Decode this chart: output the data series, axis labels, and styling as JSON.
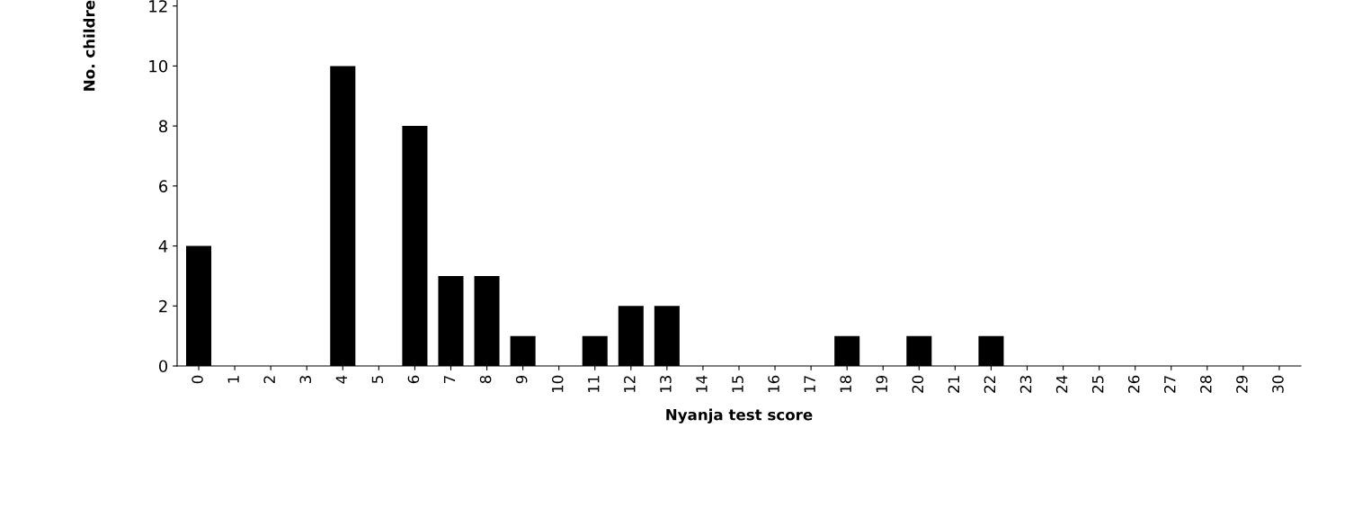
{
  "chart_data": {
    "type": "bar",
    "xlabel": "Nyanja test score",
    "ylabel": "No. childre",
    "categories": [
      "0",
      "1",
      "2",
      "3",
      "4",
      "5",
      "6",
      "7",
      "8",
      "9",
      "10",
      "11",
      "12",
      "13",
      "14",
      "15",
      "16",
      "17",
      "18",
      "19",
      "20",
      "21",
      "22",
      "23",
      "24",
      "25",
      "26",
      "27",
      "28",
      "29",
      "30"
    ],
    "values": [
      4,
      null,
      null,
      null,
      10,
      null,
      8,
      3,
      3,
      1,
      0,
      1,
      2,
      2,
      0,
      0,
      0,
      0,
      1,
      0,
      1,
      0,
      1,
      0,
      0,
      0,
      0,
      0,
      0,
      0,
      0
    ],
    "color": "#000000",
    "ylim": [
      0,
      12.2
    ],
    "yticks": [
      0,
      2,
      4,
      6,
      8,
      10,
      12
    ],
    "grid": false
  }
}
